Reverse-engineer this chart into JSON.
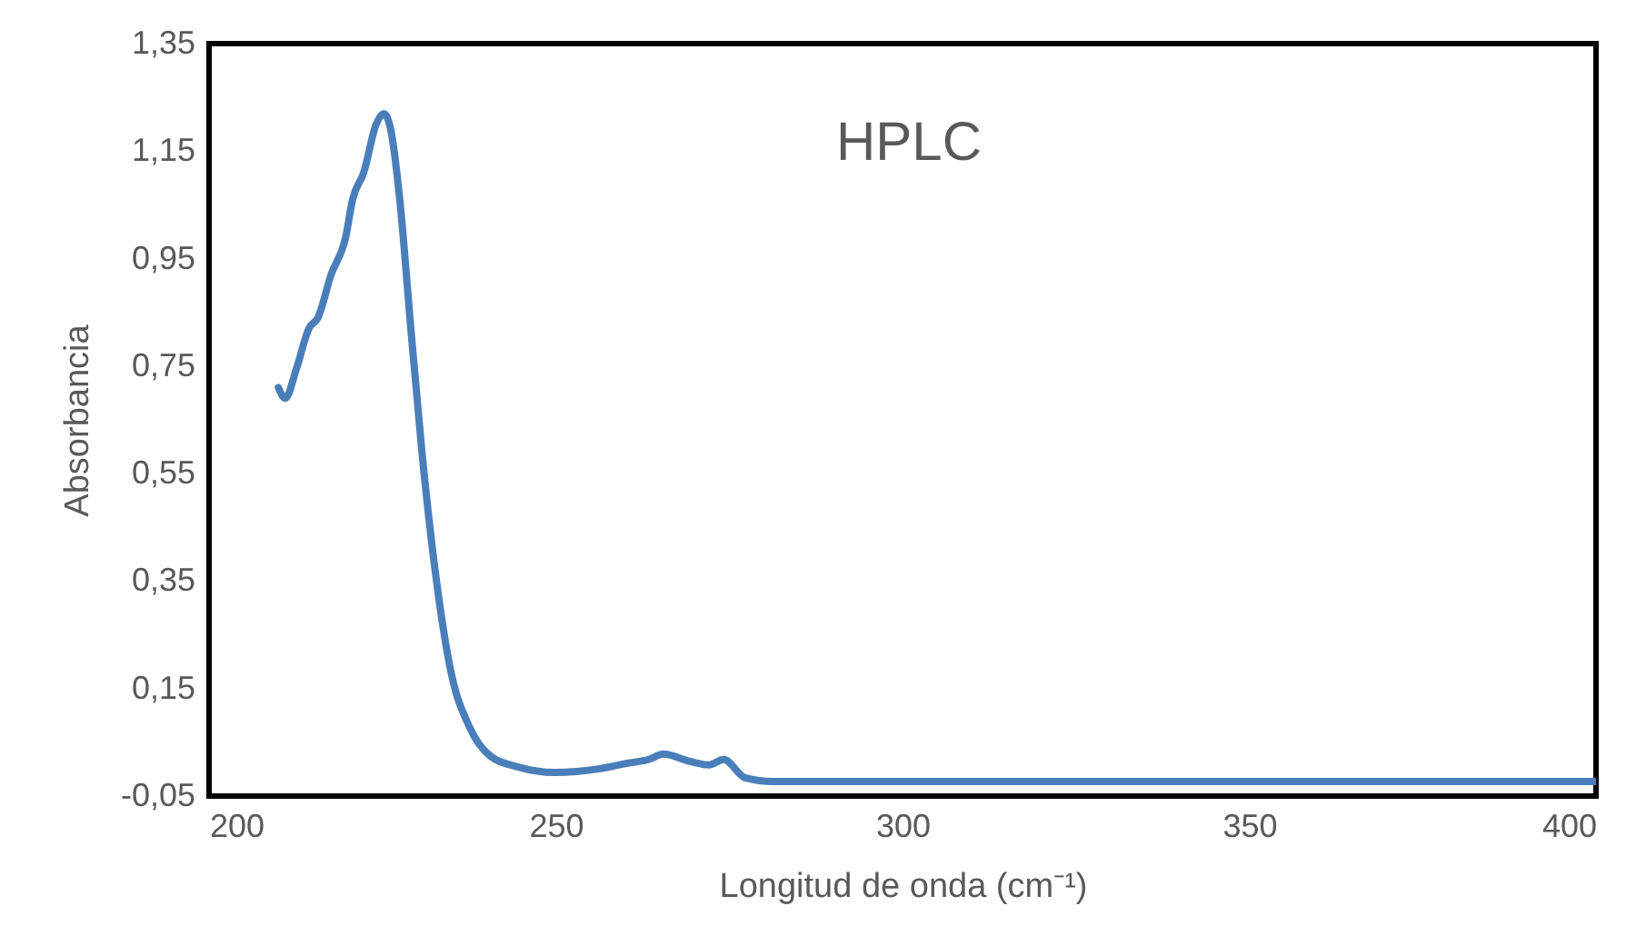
{
  "chart_data": {
    "type": "line",
    "xlabel": "Longitud de onda (cm⁻¹)",
    "ylabel": "Absorbancia",
    "annotations": [
      "HPLC"
    ],
    "x": [
      210,
      211,
      212.6,
      214.4,
      215.7,
      217.6,
      219.7,
      220.7,
      222.3,
      224.1,
      225.2,
      226.2,
      227.5,
      229.1,
      230.7,
      232.8,
      234.9,
      237.5,
      240.6,
      244.6,
      249.8,
      256.4,
      260.3,
      263.4,
      265.5,
      269.5,
      272.1,
      274.2,
      277.3,
      281.3,
      400
    ],
    "series": [
      {
        "color": "#4a7ebb",
        "values": [
          0.71,
          0.69,
          0.745,
          0.82,
          0.84,
          0.92,
          0.99,
          1.06,
          1.11,
          1.2,
          1.22,
          1.19,
          1.06,
          0.82,
          0.59,
          0.35,
          0.18,
          0.08,
          0.024,
          0.004,
          -0.006,
          0.001,
          0.011,
          0.018,
          0.028,
          0.014,
          0.008,
          0.018,
          -0.016,
          -0.023,
          -0.023
        ]
      }
    ],
    "xlim": [
      200,
      400
    ],
    "xticks": [
      200,
      250,
      300,
      350,
      400
    ],
    "ylim": [
      -0.05,
      1.35
    ],
    "yticks": [
      {
        "value": -0.05,
        "label": "-0,05"
      },
      {
        "value": 0.15,
        "label": "0,15"
      },
      {
        "value": 0.35,
        "label": "0,35"
      },
      {
        "value": 0.55,
        "label": "0,55"
      },
      {
        "value": 0.75,
        "label": "0,75"
      },
      {
        "value": 0.95,
        "label": "0,95"
      },
      {
        "value": 1.15,
        "label": "1,15"
      },
      {
        "value": 1.35,
        "label": "1,35"
      }
    ],
    "grid": false
  }
}
